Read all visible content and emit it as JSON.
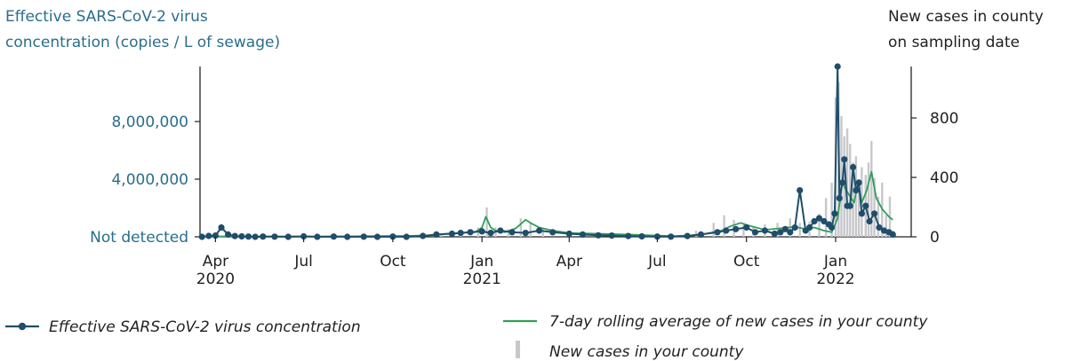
{
  "chart_data": {
    "type": "line",
    "title": "",
    "left_axis_title": [
      "Effective SARS-CoV-2 virus",
      "concentration (copies / L of sewage)"
    ],
    "right_axis_title": [
      "New cases in county",
      "on sampling date"
    ],
    "left_ylim": [
      0,
      11000000
    ],
    "right_ylim": [
      0,
      1100
    ],
    "x_range": [
      "2020-03-16",
      "2022-03-20"
    ],
    "left_ticks": [
      {
        "value": 0,
        "label": "Not detected"
      },
      {
        "value": 4000000,
        "label": "4,000,000"
      },
      {
        "value": 8000000,
        "label": "8,000,000"
      }
    ],
    "right_ticks": [
      {
        "value": 0,
        "label": "0"
      },
      {
        "value": 400,
        "label": "400"
      },
      {
        "value": 800,
        "label": "800"
      }
    ],
    "x_ticks": [
      {
        "date": "2020-04-01",
        "line1": "Apr",
        "line2": "2020"
      },
      {
        "date": "2020-07-01",
        "line1": "Jul",
        "line2": ""
      },
      {
        "date": "2020-10-01",
        "line1": "Oct",
        "line2": ""
      },
      {
        "date": "2021-01-01",
        "line1": "Jan",
        "line2": "2021"
      },
      {
        "date": "2021-04-01",
        "line1": "Apr",
        "line2": ""
      },
      {
        "date": "2021-07-01",
        "line1": "Jul",
        "line2": ""
      },
      {
        "date": "2021-10-01",
        "line1": "Oct",
        "line2": ""
      },
      {
        "date": "2022-01-01",
        "line1": "Jan",
        "line2": "2022"
      }
    ],
    "grid": false,
    "legend_placement": "bottom",
    "legend": {
      "concentration": "Effective SARS-CoV-2 virus concentration",
      "rolling": "7-day rolling average of new cases in your county",
      "cases": "New cases in your county"
    },
    "colors": {
      "concentration": "#1f4e6b",
      "rolling": "#2f9e5a",
      "cases": "#c8c8cc",
      "left_axis_text": "#2a6e8c",
      "axis": "#222222"
    },
    "series": [
      {
        "name": "Effective SARS-CoV-2 virus concentration",
        "axis": "left",
        "x": [
          "2020-03-18",
          "2020-03-25",
          "2020-04-01",
          "2020-04-07",
          "2020-04-14",
          "2020-04-21",
          "2020-04-28",
          "2020-05-05",
          "2020-05-12",
          "2020-05-20",
          "2020-06-01",
          "2020-06-15",
          "2020-07-01",
          "2020-07-15",
          "2020-08-01",
          "2020-08-15",
          "2020-09-01",
          "2020-09-15",
          "2020-10-01",
          "2020-10-15",
          "2020-11-01",
          "2020-11-15",
          "2020-12-01",
          "2020-12-10",
          "2020-12-20",
          "2021-01-01",
          "2021-01-10",
          "2021-01-20",
          "2021-02-01",
          "2021-02-15",
          "2021-03-01",
          "2021-03-15",
          "2021-04-01",
          "2021-04-15",
          "2021-05-01",
          "2021-05-15",
          "2021-06-01",
          "2021-06-15",
          "2021-07-01",
          "2021-07-15",
          "2021-08-01",
          "2021-08-15",
          "2021-09-01",
          "2021-09-10",
          "2021-09-20",
          "2021-10-01",
          "2021-10-10",
          "2021-10-20",
          "2021-10-30",
          "2021-11-05",
          "2021-11-10",
          "2021-11-15",
          "2021-11-20",
          "2021-11-25",
          "2021-12-01",
          "2021-12-05",
          "2021-12-10",
          "2021-12-15",
          "2021-12-20",
          "2021-12-25",
          "2021-12-28",
          "2021-12-31",
          "2022-01-03",
          "2022-01-05",
          "2022-01-08",
          "2022-01-10",
          "2022-01-13",
          "2022-01-16",
          "2022-01-19",
          "2022-01-22",
          "2022-01-25",
          "2022-01-28",
          "2022-02-01",
          "2022-02-05",
          "2022-02-10",
          "2022-02-15",
          "2022-02-20",
          "2022-02-25",
          "2022-03-01"
        ],
        "values": [
          0,
          60000,
          80000,
          600000,
          150000,
          50000,
          30000,
          20000,
          0,
          20000,
          10000,
          0,
          30000,
          0,
          20000,
          0,
          10000,
          0,
          20000,
          0,
          60000,
          150000,
          200000,
          250000,
          300000,
          350000,
          250000,
          400000,
          300000,
          250000,
          400000,
          300000,
          200000,
          150000,
          100000,
          80000,
          50000,
          30000,
          20000,
          10000,
          50000,
          150000,
          300000,
          400000,
          500000,
          600000,
          300000,
          400000,
          200000,
          300000,
          500000,
          300000,
          600000,
          3000000,
          400000,
          600000,
          1000000,
          1200000,
          1000000,
          800000,
          600000,
          1500000,
          11000000,
          2500000,
          3500000,
          5000000,
          2000000,
          2000000,
          4500000,
          3000000,
          3500000,
          1500000,
          2000000,
          1000000,
          1500000,
          600000,
          400000,
          300000,
          150000
        ]
      },
      {
        "name": "7-day rolling average of new cases in your county",
        "axis": "right",
        "x": [
          "2020-03-18",
          "2020-04-15",
          "2020-05-15",
          "2020-06-15",
          "2020-07-15",
          "2020-08-15",
          "2020-09-15",
          "2020-10-15",
          "2020-11-10",
          "2020-11-25",
          "2020-12-10",
          "2020-12-25",
          "2021-01-01",
          "2021-01-05",
          "2021-01-10",
          "2021-01-15",
          "2021-01-25",
          "2021-02-05",
          "2021-02-15",
          "2021-02-20",
          "2021-03-01",
          "2021-03-15",
          "2021-04-01",
          "2021-05-01",
          "2021-06-01",
          "2021-07-01",
          "2021-07-20",
          "2021-08-05",
          "2021-08-20",
          "2021-09-05",
          "2021-09-15",
          "2021-09-25",
          "2021-10-05",
          "2021-10-20",
          "2021-11-05",
          "2021-11-20",
          "2021-12-01",
          "2021-12-10",
          "2021-12-20",
          "2021-12-28",
          "2022-01-03",
          "2022-01-08",
          "2022-01-12",
          "2022-01-17",
          "2022-01-20",
          "2022-01-24",
          "2022-01-28",
          "2022-02-02",
          "2022-02-07",
          "2022-02-12",
          "2022-02-18",
          "2022-02-25",
          "2022-03-01"
        ],
        "values": [
          2,
          3,
          2,
          3,
          2,
          3,
          5,
          6,
          10,
          20,
          25,
          30,
          60,
          130,
          60,
          40,
          30,
          55,
          110,
          90,
          60,
          40,
          25,
          20,
          15,
          8,
          5,
          10,
          20,
          40,
          70,
          90,
          70,
          45,
          55,
          65,
          50,
          60,
          40,
          30,
          120,
          350,
          300,
          250,
          220,
          350,
          220,
          300,
          420,
          250,
          180,
          130,
          110
        ]
      },
      {
        "name": "New cases in your county",
        "axis": "right",
        "x": [
          "2020-04-15",
          "2020-07-15",
          "2020-10-15",
          "2020-11-20",
          "2020-12-10",
          "2020-12-28",
          "2021-01-06",
          "2021-01-15",
          "2021-01-28",
          "2021-02-10",
          "2021-02-20",
          "2021-03-05",
          "2021-04-01",
          "2021-06-01",
          "2021-08-10",
          "2021-08-28",
          "2021-09-08",
          "2021-09-18",
          "2021-09-28",
          "2021-10-08",
          "2021-10-20",
          "2021-11-02",
          "2021-11-15",
          "2021-11-25",
          "2021-12-05",
          "2021-12-15",
          "2021-12-22",
          "2021-12-28",
          "2022-01-01",
          "2022-01-04",
          "2022-01-07",
          "2022-01-10",
          "2022-01-13",
          "2022-01-16",
          "2022-01-19",
          "2022-01-22",
          "2022-01-25",
          "2022-01-28",
          "2022-02-01",
          "2022-02-04",
          "2022-02-07",
          "2022-02-10",
          "2022-02-14",
          "2022-02-18",
          "2022-02-22",
          "2022-02-26",
          "2022-03-01"
        ],
        "values": [
          5,
          4,
          8,
          20,
          40,
          60,
          190,
          60,
          50,
          120,
          90,
          60,
          25,
          12,
          40,
          90,
          140,
          110,
          80,
          70,
          80,
          90,
          120,
          90,
          100,
          150,
          250,
          350,
          900,
          1000,
          780,
          650,
          700,
          600,
          480,
          520,
          300,
          450,
          400,
          480,
          620,
          380,
          260,
          350,
          140,
          260,
          40
        ]
      }
    ]
  }
}
